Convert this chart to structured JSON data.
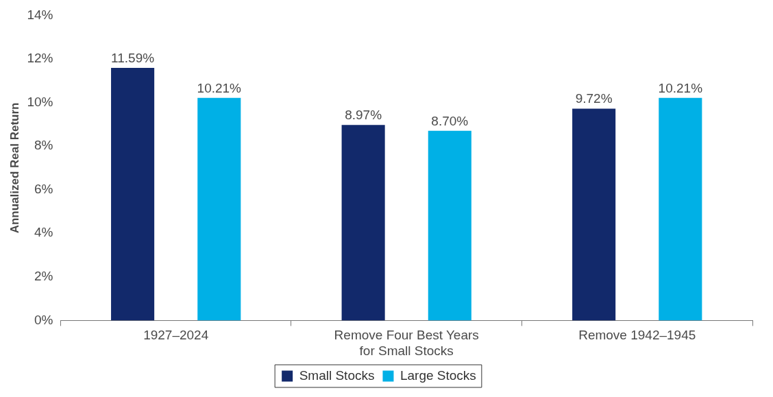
{
  "chart_data": {
    "type": "bar",
    "ylabel": "Annualized Real Return",
    "categories": [
      "1927–2024",
      "Remove Four Best Years for Small Stocks",
      "Remove 1942–1945"
    ],
    "series": [
      {
        "name": "Small Stocks",
        "color": "#12296b",
        "values": [
          11.59,
          8.97,
          9.72
        ],
        "value_labels": [
          "11.59%",
          "8.97%",
          "9.72%"
        ]
      },
      {
        "name": "Large Stocks",
        "color": "#00b0e6",
        "values": [
          10.21,
          8.7,
          10.21
        ],
        "value_labels": [
          "10.21%",
          "8.70%",
          "10.21%"
        ]
      }
    ],
    "ylim": [
      0,
      14
    ],
    "yticks": [
      {
        "value": 0,
        "label": "0%"
      },
      {
        "value": 2,
        "label": "2%"
      },
      {
        "value": 4,
        "label": "4%"
      },
      {
        "value": 6,
        "label": "6%"
      },
      {
        "value": 8,
        "label": "8%"
      },
      {
        "value": 10,
        "label": "10%"
      },
      {
        "value": 12,
        "label": "12%"
      },
      {
        "value": 14,
        "label": "14%"
      }
    ],
    "grid": false,
    "legend": "bottom"
  }
}
